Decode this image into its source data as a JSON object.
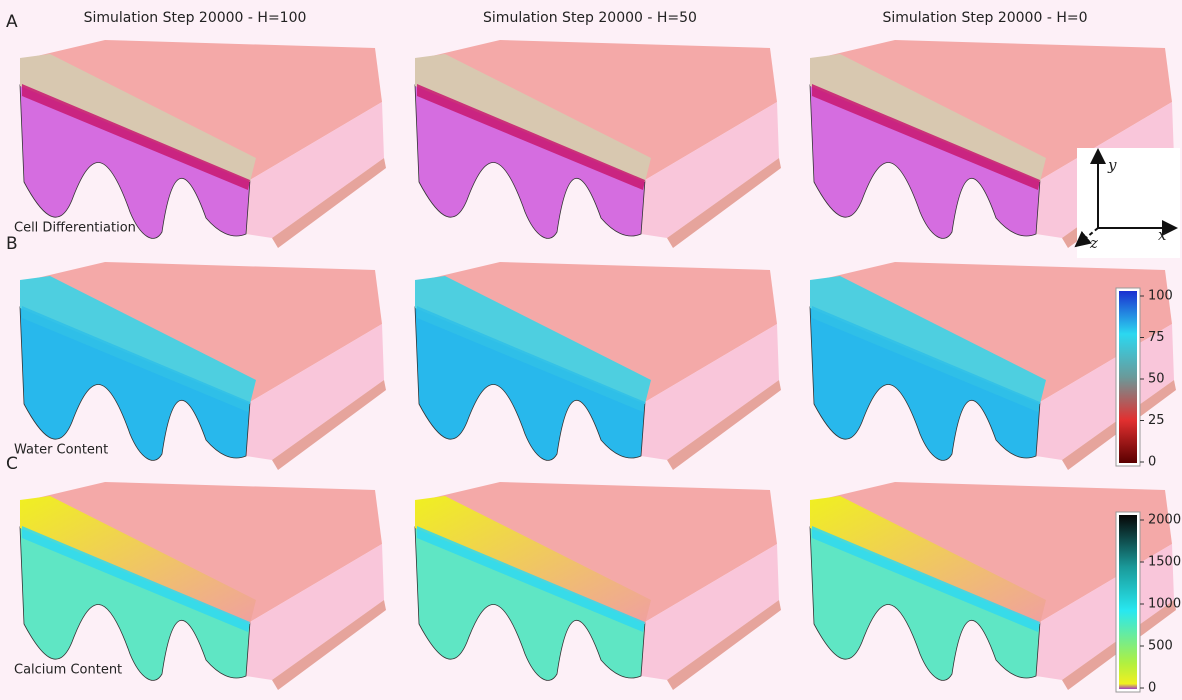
{
  "figure": {
    "column_titles": [
      "Simulation Step 20000 - H=100",
      "Simulation Step 20000 - H=50",
      "Simulation Step 20000 - H=0"
    ],
    "rows": [
      {
        "letter": "A",
        "label": "Cell Differentiation"
      },
      {
        "letter": "B",
        "label": "Water Content"
      },
      {
        "letter": "C",
        "label": "Calcium Content"
      }
    ],
    "axes": {
      "y": "y",
      "x": "x",
      "z": "z"
    },
    "colorbars": [
      {
        "ticks": [
          0,
          25,
          50,
          75,
          100
        ]
      },
      {
        "ticks": [
          0,
          500,
          1000,
          1500,
          2000
        ]
      }
    ]
  }
}
